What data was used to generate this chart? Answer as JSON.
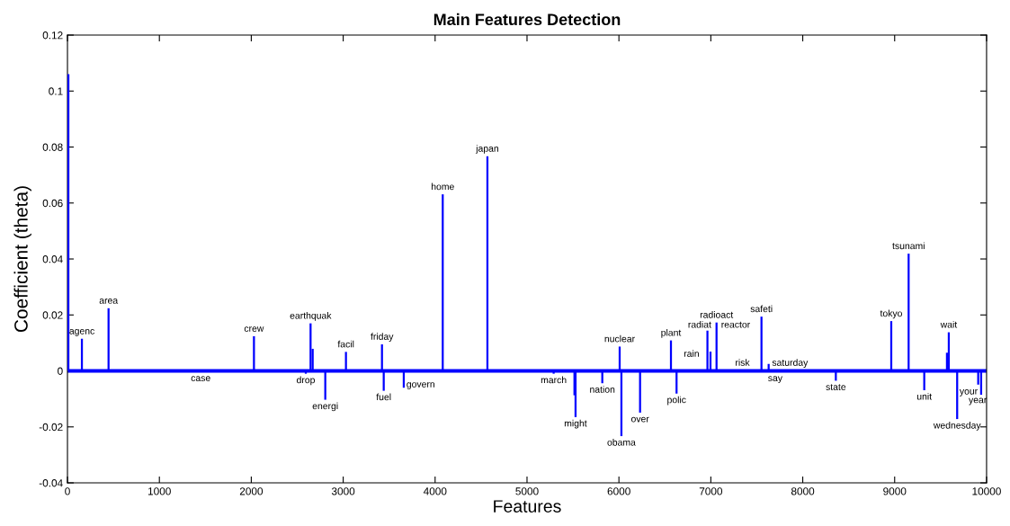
{
  "chart_data": {
    "type": "bar",
    "title": "Main Features Detection",
    "xlabel": "Features",
    "ylabel": "Coefficient (theta)",
    "x": [
      10,
      157,
      447,
      1450,
      2029,
      2593,
      2645,
      2668,
      2805,
      3030,
      3422,
      3441,
      3659,
      4083,
      4569,
      5290,
      5516,
      5528,
      5819,
      6008,
      6027,
      6230,
      6566,
      6627,
      6963,
      6996,
      7062,
      7480,
      7551,
      7629,
      7700,
      8360,
      8963,
      9152,
      9322,
      9569,
      9589,
      9680,
      9909,
      9941
    ],
    "values": [
      0.106,
      0.0115,
      0.0224,
      -0.0003,
      0.0124,
      -0.001,
      0.017,
      0.0079,
      -0.0103,
      0.0068,
      0.0095,
      -0.0071,
      -0.006,
      0.0631,
      0.0767,
      -0.001,
      -0.0087,
      -0.0165,
      -0.0044,
      0.0087,
      -0.0233,
      -0.0149,
      0.0109,
      -0.0081,
      0.0144,
      0.0069,
      0.0173,
      0.0003,
      0.0194,
      0.0025,
      -0.0003,
      -0.0035,
      0.0178,
      0.0419,
      -0.0069,
      0.0065,
      0.0138,
      -0.0172,
      -0.0049,
      -0.0085
    ],
    "color": "#0000ff",
    "xlim": [
      0,
      10000
    ],
    "xticks": [
      0,
      1000,
      2000,
      3000,
      4000,
      5000,
      6000,
      7000,
      8000,
      9000,
      10000
    ],
    "ylim": [
      -0.04,
      0.12
    ],
    "yticks": [
      {
        "value": -0.04,
        "label": "-0.04"
      },
      {
        "value": -0.02,
        "label": "-0.02"
      },
      0,
      0.02,
      0.04,
      0.06,
      0.08,
      {
        "value": 0.1,
        "label": "0.1"
      },
      0.12
    ],
    "ref_lines": [
      {
        "axis": "y",
        "value": 0,
        "color": "#0000ff"
      }
    ],
    "grid": false,
    "legend": false,
    "annotations": [
      {
        "text": "agenc",
        "x": 157,
        "y": 0.0115
      },
      {
        "text": "area",
        "x": 447,
        "y": 0.0224
      },
      {
        "text": "case",
        "x": 1450,
        "y": -0.0003
      },
      {
        "text": "crew",
        "x": 2029,
        "y": 0.0124
      },
      {
        "text": "earthquak",
        "x": 2645,
        "y": 0.017
      },
      {
        "text": "drop",
        "x": 2593,
        "y": -0.001
      },
      {
        "text": "energi",
        "x": 2805,
        "y": -0.0103
      },
      {
        "text": "facil",
        "x": 3030,
        "y": 0.0068
      },
      {
        "text": "friday",
        "x": 3422,
        "y": 0.0095
      },
      {
        "text": "fuel",
        "x": 3441,
        "y": -0.0071
      },
      {
        "text": "govern",
        "x": 3659,
        "y": -0.006
      },
      {
        "text": "home",
        "x": 4083,
        "y": 0.0631
      },
      {
        "text": "japan",
        "x": 4569,
        "y": 0.0767
      },
      {
        "text": "march",
        "x": 5290,
        "y": -0.001
      },
      {
        "text": "might",
        "x": 5528,
        "y": -0.0165
      },
      {
        "text": "nation",
        "x": 5819,
        "y": -0.0044
      },
      {
        "text": "nuclear",
        "x": 6008,
        "y": 0.0087
      },
      {
        "text": "obama",
        "x": 6027,
        "y": -0.0233
      },
      {
        "text": "over",
        "x": 6230,
        "y": -0.0149
      },
      {
        "text": "plant",
        "x": 6566,
        "y": 0.0109
      },
      {
        "text": "polic",
        "x": 6627,
        "y": -0.0081
      },
      {
        "text": "rain",
        "x": 6996,
        "y": 0.0069
      },
      {
        "text": "radioact",
        "x": 7062,
        "y": 0.0173
      },
      {
        "text": "radiat",
        "x": 7062,
        "y": 0.0173
      },
      {
        "text": "reactor",
        "x": 7062,
        "y": 0.0173
      },
      {
        "text": "risk",
        "x": 7480,
        "y": 0.0003
      },
      {
        "text": "safeti",
        "x": 7551,
        "y": 0.0194
      },
      {
        "text": "saturday",
        "x": 7629,
        "y": 0.0025
      },
      {
        "text": "say",
        "x": 7700,
        "y": -0.0003
      },
      {
        "text": "state",
        "x": 8360,
        "y": -0.0035
      },
      {
        "text": "tokyo",
        "x": 8963,
        "y": 0.0178
      },
      {
        "text": "tsunami",
        "x": 9152,
        "y": 0.0419
      },
      {
        "text": "unit",
        "x": 9322,
        "y": -0.0069
      },
      {
        "text": "wait",
        "x": 9589,
        "y": 0.0138
      },
      {
        "text": "wednesday",
        "x": 9680,
        "y": -0.0172
      },
      {
        "text": "year",
        "x": 9909,
        "y": -0.0049
      },
      {
        "text": "your",
        "x": 9941,
        "y": -0.0085
      }
    ]
  }
}
